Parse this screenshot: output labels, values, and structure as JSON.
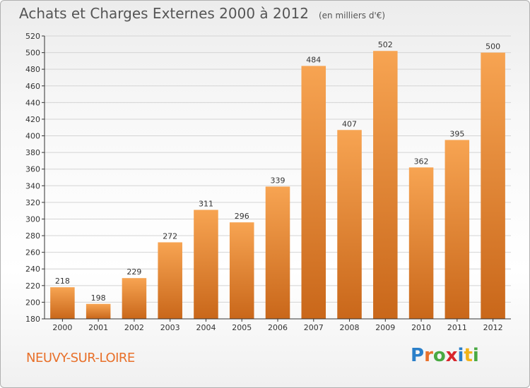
{
  "header": {
    "title": "Achats et Charges Externes 2000 à 2012",
    "unit": "(en milliers d'€)"
  },
  "footer": {
    "commune": "NEUVY-SUR-LOIRE",
    "logo_letters": [
      "P",
      "r",
      "o",
      "x",
      "i",
      "t",
      "i"
    ],
    "logo_colors": [
      "#2a7fc9",
      "#e8702a",
      "#49a942",
      "#d9262c",
      "#2a7fc9",
      "#f2b318",
      "#49a942"
    ]
  },
  "colors": {
    "bar_top": "#f7a452",
    "bar_bottom": "#c9671a",
    "grid": "#d4d4d4",
    "axis": "#333333"
  },
  "chart_data": {
    "type": "bar",
    "title": "Achats et Charges Externes 2000 à 2012",
    "subtitle": "(en milliers d'€)",
    "categories": [
      "2000",
      "2001",
      "2002",
      "2003",
      "2004",
      "2005",
      "2006",
      "2007",
      "2008",
      "2009",
      "2010",
      "2011",
      "2012"
    ],
    "values": [
      218,
      198,
      229,
      272,
      311,
      296,
      339,
      484,
      407,
      502,
      362,
      395,
      500
    ],
    "ylim": [
      180,
      520
    ],
    "ytick_step": 20,
    "grid": true,
    "xlabel": "",
    "ylabel": ""
  }
}
